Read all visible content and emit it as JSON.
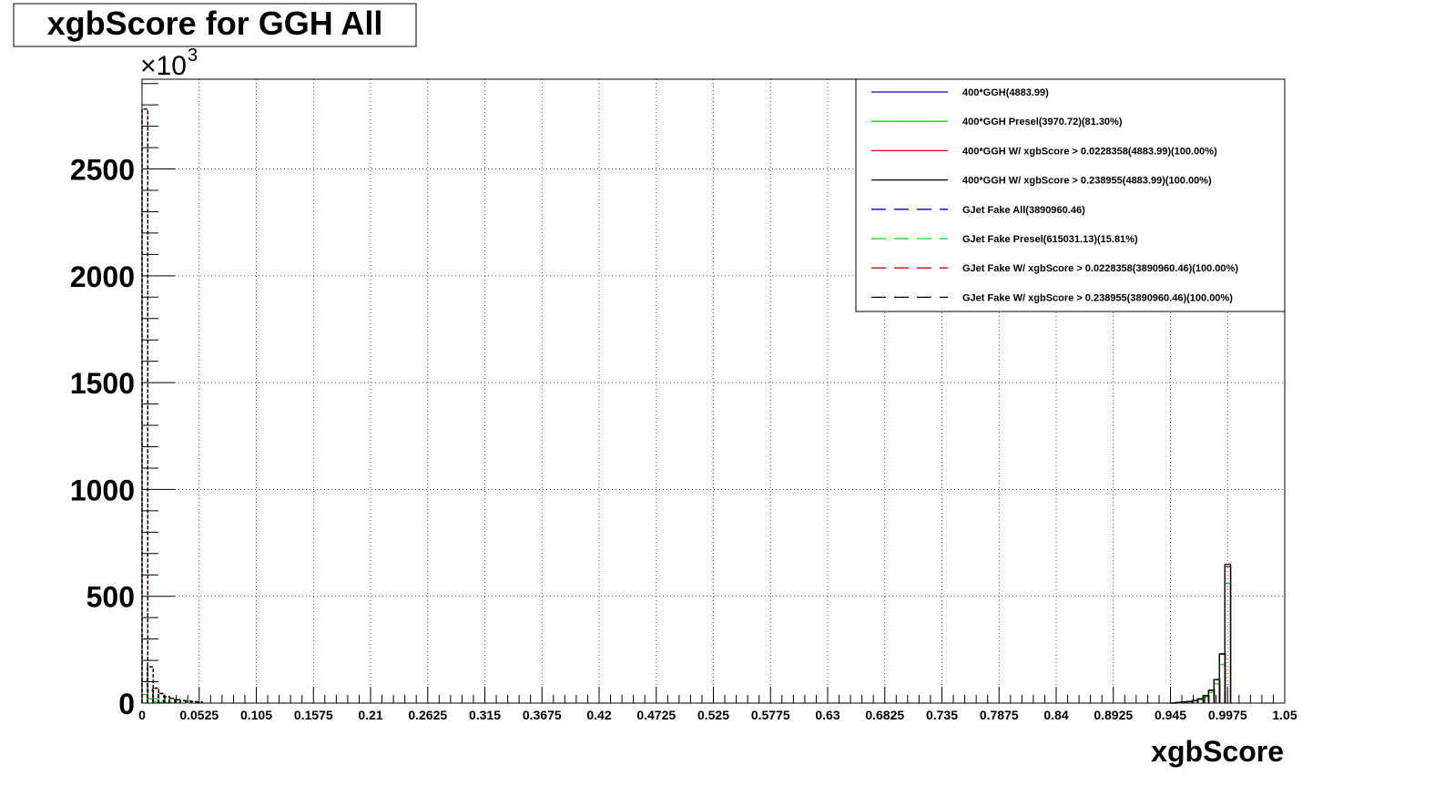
{
  "chart_data": {
    "type": "histogram",
    "title": "xgbScore for GGH All",
    "xlabel": "xgbScore",
    "ylabel": "",
    "y_multiplier": "10",
    "y_multiplier_prefix": "×",
    "y_multiplier_exponent": "3",
    "xlim": [
      0,
      1.05
    ],
    "ylim": [
      0,
      2920
    ],
    "grid": true,
    "legend_position": "top-right",
    "x_tick_labels": [
      "0",
      "0.0525",
      "0.105",
      "0.1575",
      "0.21",
      "0.2625",
      "0.315",
      "0.3675",
      "0.42",
      "0.4725",
      "0.525",
      "0.5775",
      "0.63",
      "0.6825",
      "0.735",
      "0.7875",
      "0.84",
      "0.8925",
      "0.945",
      "0.9975",
      "1.05"
    ],
    "x_ticks": [
      0,
      0.0525,
      0.105,
      0.1575,
      0.21,
      0.2625,
      0.315,
      0.3675,
      0.42,
      0.4725,
      0.525,
      0.5775,
      0.63,
      0.6825,
      0.735,
      0.7875,
      0.84,
      0.8925,
      0.945,
      0.9975,
      1.05
    ],
    "y_tick_labels": [
      "0",
      "500",
      "1000",
      "1500",
      "2000",
      "2500"
    ],
    "y_ticks": [
      0,
      500,
      1000,
      1500,
      2000,
      2500
    ],
    "bin_width": 0.00525,
    "series": [
      {
        "name": "400*GGH(4883.99)",
        "color": "#0000cc",
        "style": "solid",
        "bins_x": [
          0.945,
          0.95,
          0.955,
          0.96,
          0.965,
          0.97,
          0.975,
          0.98,
          0.985,
          0.99,
          0.995
        ],
        "values": [
          0,
          3,
          5,
          8,
          12,
          20,
          35,
          60,
          110,
          230,
          640
        ]
      },
      {
        "name": "400*GGH Presel(3970.72)(81.30%)",
        "color": "#00dd00",
        "style": "solid",
        "bins_x": [
          0,
          0.005,
          0.01,
          0.015,
          0.02,
          0.945,
          0.95,
          0.955,
          0.96,
          0.965,
          0.97,
          0.975,
          0.98,
          0.985,
          0.99,
          0.995
        ],
        "values": [
          40,
          20,
          8,
          3,
          1,
          0,
          2,
          4,
          6,
          10,
          16,
          28,
          50,
          90,
          180,
          560
        ]
      },
      {
        "name": "400*GGH W/ xgbScore > 0.0228358(4883.99)(100.00%)",
        "color": "#dd0000",
        "style": "solid",
        "bins_x": [
          0.945,
          0.95,
          0.955,
          0.96,
          0.965,
          0.97,
          0.975,
          0.98,
          0.985,
          0.99,
          0.995
        ],
        "values": [
          0,
          3,
          5,
          8,
          12,
          20,
          35,
          60,
          110,
          230,
          640
        ]
      },
      {
        "name": "400*GGH W/ xgbScore > 0.238955(4883.99)(100.00%)",
        "color": "#000000",
        "style": "solid",
        "bins_x": [
          0.945,
          0.95,
          0.955,
          0.96,
          0.965,
          0.97,
          0.975,
          0.98,
          0.985,
          0.99,
          0.995
        ],
        "values": [
          0,
          3,
          5,
          8,
          12,
          20,
          35,
          60,
          110,
          230,
          650
        ]
      },
      {
        "name": "GJet Fake All(3890960.46)",
        "color": "#0000cc",
        "style": "dashed",
        "bins_x": [
          0,
          0.005,
          0.01,
          0.015,
          0.02,
          0.025,
          0.03,
          0.035,
          0.04,
          0.045,
          0.05
        ],
        "values": [
          2780,
          170,
          70,
          45,
          30,
          22,
          16,
          12,
          9,
          7,
          5
        ]
      },
      {
        "name": "GJet Fake Presel(615031.13)(15.81%)",
        "color": "#00dd00",
        "style": "dashed",
        "bins_x": [
          0,
          0.005,
          0.01,
          0.015,
          0.02,
          0.025,
          0.03,
          0.035,
          0.04
        ],
        "values": [
          300,
          60,
          20,
          10,
          6,
          4,
          3,
          2,
          1
        ]
      },
      {
        "name": "GJet Fake W/ xgbScore > 0.0228358(3890960.46)(100.00%)",
        "color": "#dd0000",
        "style": "dashed",
        "bins_x": [
          0,
          0.005,
          0.01,
          0.015,
          0.02,
          0.025,
          0.03,
          0.035,
          0.04,
          0.045,
          0.05
        ],
        "values": [
          2780,
          170,
          70,
          45,
          30,
          22,
          16,
          12,
          9,
          7,
          5
        ]
      },
      {
        "name": "GJet Fake W/ xgbScore > 0.238955(3890960.46)(100.00%)",
        "color": "#000000",
        "style": "dashed",
        "bins_x": [
          0,
          0.005,
          0.01,
          0.015,
          0.02,
          0.025,
          0.03,
          0.035,
          0.04,
          0.045,
          0.05
        ],
        "values": [
          2780,
          170,
          70,
          45,
          30,
          22,
          16,
          12,
          9,
          7,
          5
        ]
      }
    ]
  }
}
